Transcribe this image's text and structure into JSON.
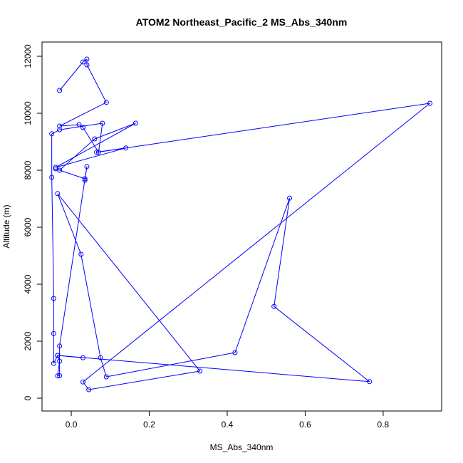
{
  "chart_data": {
    "type": "line",
    "title": "ATOM2 Northeast_Pacific_2 MS_Abs_340nm",
    "xlabel": "MS_Abs_340nm",
    "ylabel": "Altitude (m)",
    "xlim": [
      -0.075,
      0.95
    ],
    "ylim": [
      -450,
      12500
    ],
    "xticks": [
      0.0,
      0.2,
      0.4,
      0.6,
      0.8
    ],
    "xtick_labels": [
      "0.0",
      "0.2",
      "0.4",
      "0.6",
      "0.8"
    ],
    "yticks": [
      0,
      2000,
      4000,
      6000,
      8000,
      10000,
      12000
    ],
    "ytick_labels": [
      "0",
      "2000",
      "4000",
      "6000",
      "8000",
      "10000",
      "12000"
    ],
    "grid": false,
    "series": [
      {
        "color": "#0000ff",
        "marker": "open-circle",
        "points": [
          [
            -0.03,
            10800
          ],
          [
            0.03,
            11800
          ],
          [
            0.04,
            11900
          ],
          [
            0.04,
            11700
          ],
          [
            0.09,
            10380
          ],
          [
            -0.03,
            9550
          ],
          [
            0.02,
            9600
          ],
          [
            0.03,
            9500
          ],
          [
            0.07,
            8630
          ],
          [
            0.08,
            9650
          ],
          [
            -0.03,
            9420
          ],
          [
            -0.05,
            9280
          ],
          [
            -0.05,
            7750
          ],
          [
            -0.045,
            3500
          ],
          [
            -0.045,
            2270
          ],
          [
            -0.045,
            1220
          ],
          [
            -0.035,
            1500
          ],
          [
            -0.03,
            1300
          ],
          [
            -0.035,
            780
          ],
          [
            -0.03,
            790
          ],
          [
            -0.03,
            1830
          ],
          [
            0.04,
            8130
          ],
          [
            0.035,
            7650
          ],
          [
            0.035,
            7700
          ],
          [
            -0.04,
            8050
          ],
          [
            -0.03,
            8000
          ],
          [
            0.06,
            9100
          ],
          [
            0.165,
            9650
          ],
          [
            -0.04,
            8100
          ],
          [
            0.14,
            8780
          ],
          [
            0.065,
            8630
          ],
          [
            0.92,
            10350
          ],
          [
            0.03,
            570
          ],
          [
            0.045,
            300
          ],
          [
            0.33,
            950
          ],
          [
            -0.035,
            7180
          ],
          [
            0.025,
            5050
          ],
          [
            0.075,
            1420
          ],
          [
            0.09,
            750
          ],
          [
            0.42,
            1600
          ],
          [
            0.56,
            7020
          ],
          [
            0.52,
            3220
          ],
          [
            0.765,
            580
          ],
          [
            -0.035,
            1500
          ],
          [
            0.03,
            1420
          ]
        ]
      }
    ]
  }
}
